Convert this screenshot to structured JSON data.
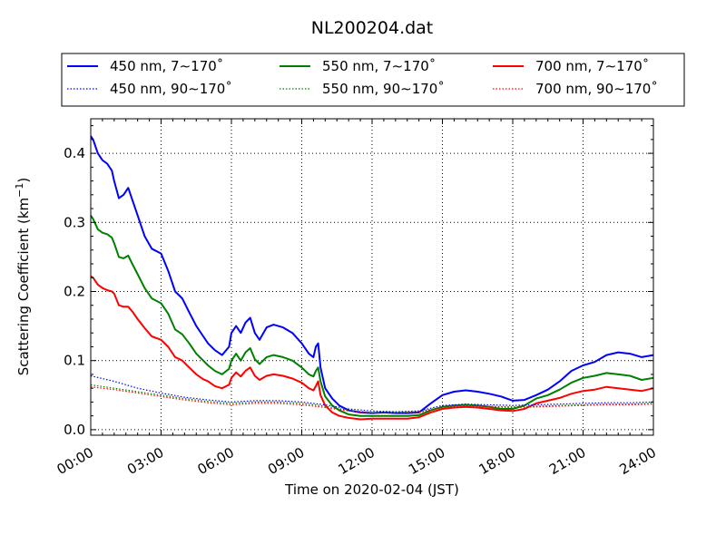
{
  "chart_data": {
    "type": "line",
    "title": "NL200204.dat",
    "xlabel": "Time on 2020-02-04 (JST)",
    "ylabel": "Scattering Coefficient (km",
    "ylabel_superscript": "−1",
    "ylabel_suffix": ")",
    "x_unit": "hours",
    "xlim": [
      0,
      24
    ],
    "ylim": [
      -0.008,
      0.45
    ],
    "x_ticks": [
      0,
      3,
      6,
      9,
      12,
      15,
      18,
      21,
      24
    ],
    "x_tick_labels": [
      "00:00",
      "03:00",
      "06:00",
      "09:00",
      "12:00",
      "15:00",
      "18:00",
      "21:00",
      "24:00"
    ],
    "y_ticks": [
      0.0,
      0.1,
      0.2,
      0.3,
      0.4
    ],
    "y_tick_labels": [
      "0.0",
      "0.1",
      "0.2",
      "0.3",
      "0.4"
    ],
    "grid": true,
    "legend_placement": "top, outside plot area, 3 columns",
    "colors": {
      "blue": "#0000ff",
      "green": "#008000",
      "red": "#ff0000"
    },
    "series": [
      {
        "name": "450 nm, 7∼170˚",
        "color": "#0000ff",
        "style": "solid",
        "x": [
          0,
          0.1,
          0.3,
          0.5,
          0.7,
          0.9,
          1,
          1.2,
          1.4,
          1.6,
          1.8,
          2,
          2.3,
          2.6,
          3,
          3.3,
          3.6,
          3.9,
          4.2,
          4.5,
          4.8,
          5,
          5.3,
          5.6,
          5.9,
          6,
          6.2,
          6.4,
          6.6,
          6.8,
          7,
          7.2,
          7.5,
          7.8,
          8.2,
          8.6,
          9,
          9.3,
          9.5,
          9.6,
          9.7,
          9.8,
          10,
          10.3,
          10.6,
          11,
          11.5,
          12,
          12.5,
          13,
          13.5,
          14,
          14.5,
          15,
          15.5,
          16,
          16.5,
          17,
          17.5,
          18,
          18.5,
          19,
          19.5,
          20,
          20.5,
          21,
          21.5,
          22,
          22.5,
          23,
          23.5,
          24
        ],
        "y": [
          0.425,
          0.42,
          0.4,
          0.39,
          0.385,
          0.375,
          0.36,
          0.335,
          0.34,
          0.35,
          0.33,
          0.31,
          0.28,
          0.262,
          0.255,
          0.23,
          0.2,
          0.19,
          0.17,
          0.15,
          0.135,
          0.125,
          0.115,
          0.108,
          0.12,
          0.14,
          0.15,
          0.14,
          0.155,
          0.162,
          0.14,
          0.13,
          0.148,
          0.152,
          0.148,
          0.14,
          0.125,
          0.11,
          0.105,
          0.12,
          0.125,
          0.09,
          0.06,
          0.045,
          0.035,
          0.028,
          0.025,
          0.024,
          0.025,
          0.024,
          0.024,
          0.025,
          0.038,
          0.05,
          0.055,
          0.057,
          0.055,
          0.052,
          0.048,
          0.042,
          0.043,
          0.05,
          0.058,
          0.07,
          0.085,
          0.093,
          0.098,
          0.108,
          0.112,
          0.11,
          0.105,
          0.108
        ]
      },
      {
        "name": "550 nm, 7∼170˚",
        "color": "#008000",
        "style": "solid",
        "x": [
          0,
          0.1,
          0.3,
          0.5,
          0.7,
          0.9,
          1,
          1.2,
          1.4,
          1.6,
          1.8,
          2,
          2.3,
          2.6,
          3,
          3.3,
          3.6,
          3.9,
          4.2,
          4.5,
          4.8,
          5,
          5.3,
          5.6,
          5.9,
          6,
          6.2,
          6.4,
          6.6,
          6.8,
          7,
          7.2,
          7.5,
          7.8,
          8.2,
          8.6,
          9,
          9.3,
          9.5,
          9.6,
          9.7,
          9.8,
          10,
          10.3,
          10.6,
          11,
          11.5,
          12,
          12.5,
          13,
          13.5,
          14,
          14.5,
          15,
          15.5,
          16,
          16.5,
          17,
          17.5,
          18,
          18.5,
          19,
          19.5,
          20,
          20.5,
          21,
          21.5,
          22,
          22.5,
          23,
          23.5,
          24
        ],
        "y": [
          0.31,
          0.305,
          0.29,
          0.285,
          0.283,
          0.278,
          0.27,
          0.25,
          0.248,
          0.252,
          0.238,
          0.225,
          0.205,
          0.19,
          0.183,
          0.168,
          0.145,
          0.138,
          0.125,
          0.11,
          0.1,
          0.093,
          0.085,
          0.08,
          0.088,
          0.1,
          0.11,
          0.1,
          0.112,
          0.118,
          0.102,
          0.095,
          0.105,
          0.108,
          0.105,
          0.1,
          0.09,
          0.08,
          0.077,
          0.085,
          0.09,
          0.07,
          0.048,
          0.035,
          0.028,
          0.022,
          0.02,
          0.02,
          0.02,
          0.02,
          0.02,
          0.021,
          0.028,
          0.033,
          0.035,
          0.036,
          0.035,
          0.033,
          0.03,
          0.03,
          0.035,
          0.045,
          0.05,
          0.058,
          0.068,
          0.075,
          0.078,
          0.082,
          0.08,
          0.078,
          0.072,
          0.075
        ]
      },
      {
        "name": "700 nm, 7∼170˚",
        "color": "#ff0000",
        "style": "solid",
        "x": [
          0,
          0.1,
          0.3,
          0.5,
          0.7,
          0.9,
          1,
          1.2,
          1.4,
          1.6,
          1.8,
          2,
          2.3,
          2.6,
          3,
          3.3,
          3.6,
          3.9,
          4.2,
          4.5,
          4.8,
          5,
          5.3,
          5.6,
          5.9,
          6,
          6.2,
          6.4,
          6.6,
          6.8,
          7,
          7.2,
          7.5,
          7.8,
          8.2,
          8.6,
          9,
          9.3,
          9.5,
          9.6,
          9.7,
          9.8,
          10,
          10.3,
          10.6,
          11,
          11.5,
          12,
          12.5,
          13,
          13.5,
          14,
          14.5,
          15,
          15.5,
          16,
          16.5,
          17,
          17.5,
          18,
          18.5,
          19,
          19.5,
          20,
          20.5,
          21,
          21.5,
          22,
          22.5,
          23,
          23.5,
          24
        ],
        "y": [
          0.222,
          0.22,
          0.21,
          0.205,
          0.202,
          0.2,
          0.197,
          0.18,
          0.178,
          0.178,
          0.17,
          0.16,
          0.147,
          0.135,
          0.13,
          0.12,
          0.105,
          0.1,
          0.09,
          0.08,
          0.073,
          0.07,
          0.063,
          0.06,
          0.065,
          0.075,
          0.083,
          0.077,
          0.085,
          0.09,
          0.078,
          0.072,
          0.078,
          0.08,
          0.078,
          0.074,
          0.068,
          0.06,
          0.057,
          0.063,
          0.07,
          0.05,
          0.035,
          0.025,
          0.02,
          0.017,
          0.015,
          0.016,
          0.016,
          0.016,
          0.016,
          0.018,
          0.025,
          0.03,
          0.032,
          0.033,
          0.032,
          0.03,
          0.028,
          0.027,
          0.03,
          0.038,
          0.042,
          0.046,
          0.052,
          0.056,
          0.058,
          0.062,
          0.06,
          0.058,
          0.056,
          0.06
        ]
      },
      {
        "name": "450 nm, 90∼170˚",
        "color": "#0000ff",
        "style": "dotted",
        "x": [
          0,
          1,
          2,
          3,
          4,
          5,
          6,
          7,
          8,
          9,
          10,
          11,
          12,
          13,
          14,
          15,
          16,
          17,
          18,
          19,
          20,
          21,
          22,
          23,
          24
        ],
        "y": [
          0.078,
          0.07,
          0.06,
          0.053,
          0.047,
          0.043,
          0.04,
          0.042,
          0.042,
          0.04,
          0.036,
          0.03,
          0.027,
          0.026,
          0.027,
          0.035,
          0.037,
          0.036,
          0.035,
          0.036,
          0.037,
          0.038,
          0.039,
          0.039,
          0.04
        ]
      },
      {
        "name": "550 nm, 90∼170˚",
        "color": "#008000",
        "style": "dotted",
        "x": [
          0,
          1,
          2,
          3,
          4,
          5,
          6,
          7,
          8,
          9,
          10,
          11,
          12,
          13,
          14,
          15,
          16,
          17,
          18,
          19,
          20,
          21,
          22,
          23,
          24
        ],
        "y": [
          0.065,
          0.06,
          0.055,
          0.05,
          0.045,
          0.041,
          0.038,
          0.04,
          0.04,
          0.038,
          0.034,
          0.028,
          0.025,
          0.025,
          0.026,
          0.033,
          0.035,
          0.034,
          0.033,
          0.034,
          0.035,
          0.036,
          0.037,
          0.037,
          0.038
        ]
      },
      {
        "name": "700 nm, 90∼170˚",
        "color": "#ff0000",
        "style": "dotted",
        "x": [
          0,
          1,
          2,
          3,
          4,
          5,
          6,
          7,
          8,
          9,
          10,
          11,
          12,
          13,
          14,
          15,
          16,
          17,
          18,
          19,
          20,
          21,
          22,
          23,
          24
        ],
        "y": [
          0.062,
          0.058,
          0.053,
          0.048,
          0.043,
          0.039,
          0.036,
          0.038,
          0.038,
          0.036,
          0.032,
          0.027,
          0.024,
          0.024,
          0.025,
          0.032,
          0.034,
          0.033,
          0.032,
          0.033,
          0.034,
          0.035,
          0.036,
          0.036,
          0.037
        ]
      }
    ],
    "legend_order": [
      0,
      1,
      2,
      3,
      4,
      5
    ]
  }
}
